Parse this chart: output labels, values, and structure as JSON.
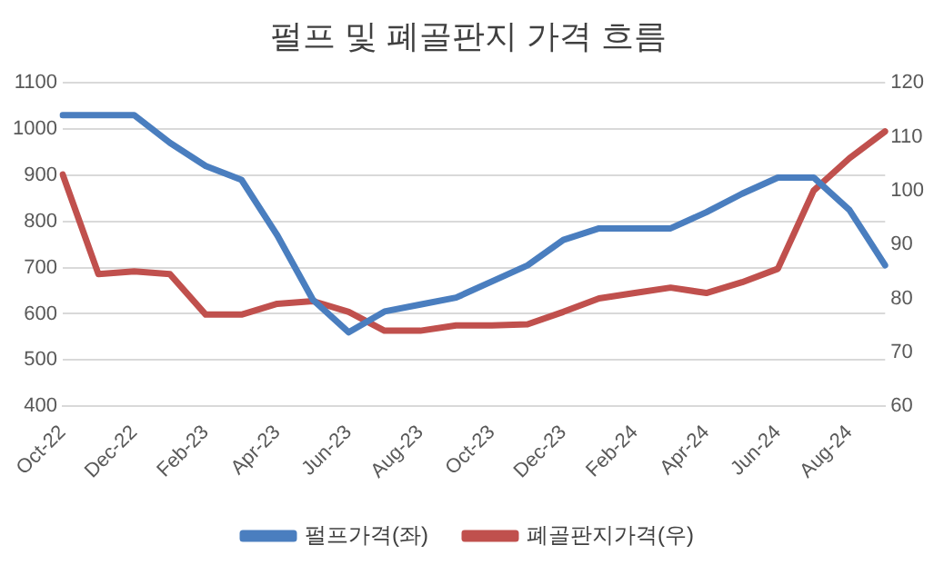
{
  "chart_data": {
    "type": "line",
    "title": "펄프 및 폐골판지 가격 흐름",
    "categories": [
      "Oct-22",
      null,
      "Dec-22",
      null,
      "Feb-23",
      null,
      "Apr-23",
      null,
      "Jun-23",
      null,
      "Aug-23",
      null,
      "Oct-23",
      null,
      "Dec-23",
      null,
      "Feb-24",
      null,
      "Apr-24",
      null,
      "Jun-24",
      null,
      "Aug-24",
      null
    ],
    "series": [
      {
        "name": "펄프가격(좌)",
        "color": "#4a7ebf",
        "values": [
          1030,
          1030,
          1030,
          970,
          920,
          890,
          770,
          630,
          560,
          605,
          620,
          635,
          670,
          705,
          760,
          785,
          785,
          785,
          820,
          860,
          895,
          895,
          825,
          705
        ]
      },
      {
        "name": "폐골판지가격(우)",
        "color": "#c0504d",
        "axis": "y2",
        "values": [
          103,
          84.5,
          85,
          84.5,
          77,
          77,
          79,
          79.5,
          77.5,
          74,
          74,
          75,
          75,
          75.2,
          77.5,
          80,
          81,
          82,
          81,
          83,
          85.5,
          100,
          106,
          111
        ]
      }
    ],
    "ylim": [
      400,
      1100
    ],
    "yticks": [
      400,
      500,
      600,
      700,
      800,
      900,
      1000,
      1100
    ],
    "y2lim": [
      60,
      120
    ],
    "y2ticks": [
      60,
      70,
      80,
      90,
      100,
      110,
      120
    ],
    "grid": "y",
    "legend": "bottom",
    "marker": "none",
    "line_style": "solid"
  }
}
